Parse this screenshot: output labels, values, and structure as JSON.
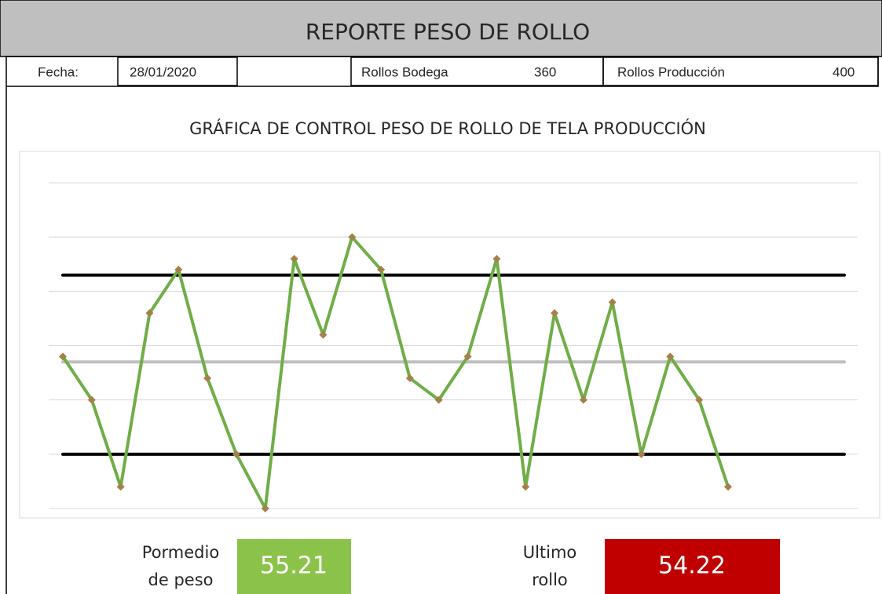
{
  "header": {
    "title": "REPORTE PESO DE ROLLO"
  },
  "info": {
    "date_label": "Fecha:",
    "date": "28/01/2020",
    "warehouse_label": "Rollos Bodega",
    "warehouse": 360,
    "production_label": "Rollos Producción",
    "production": 400
  },
  "chart_data": {
    "type": "line",
    "title": "GRÁFICA DE CONTROL PESO DE ROLLO DE TELA PRODUCCIÓN",
    "categories": [
      null,
      null,
      null,
      null,
      null,
      null,
      null,
      null,
      null,
      null,
      null,
      null,
      null,
      null,
      null,
      null,
      null,
      null,
      null,
      null,
      null,
      null,
      null,
      null
    ],
    "series": [
      {
        "color": "#70ad47",
        "marker_color": "#a5804a",
        "values": [
          54.8,
          54.0,
          52.4,
          55.6,
          56.4,
          54.4,
          53.0,
          52.0,
          56.6,
          55.2,
          57.0,
          56.4,
          54.4,
          54.0,
          54.8,
          56.6,
          52.4,
          55.6,
          54.0,
          55.8,
          53.0,
          54.8,
          54.0,
          52.4
        ]
      }
    ],
    "reference_lines": [
      {
        "value": 56.3,
        "color": "#000000"
      },
      {
        "value": 54.7,
        "color": "#bfbfbf"
      },
      {
        "value": 53.0,
        "color": "#000000"
      }
    ],
    "ylim": [
      52,
      58
    ],
    "yticks": [
      52,
      53,
      54,
      55,
      56,
      57,
      58
    ],
    "grid": true
  },
  "summary": {
    "average_label_1": "Pormedio",
    "average_label_2": "de peso",
    "average": "55.21",
    "average_color": "#8bc34a",
    "last_label_1": "Ultimo",
    "last_label_2": "rollo",
    "last": "54.22",
    "last_color": "#c00000"
  }
}
